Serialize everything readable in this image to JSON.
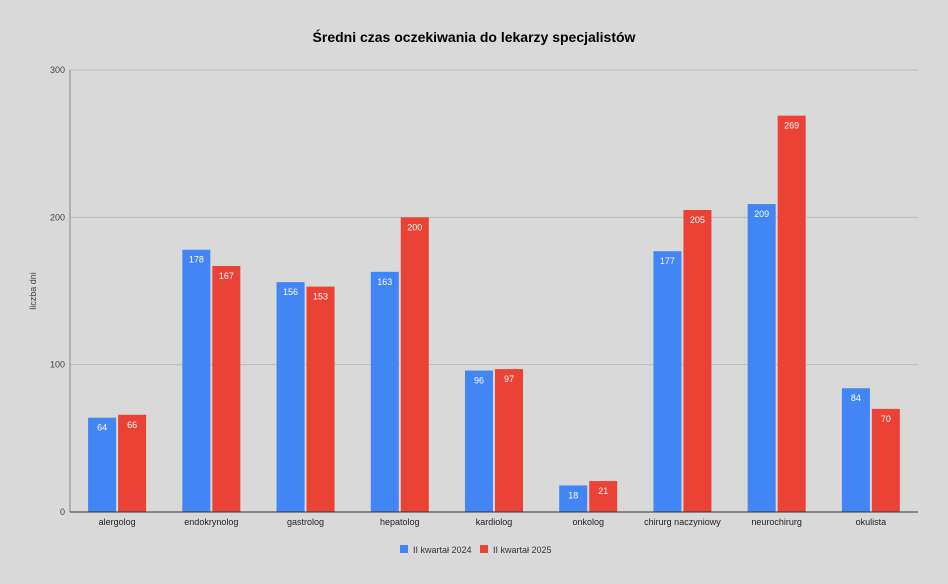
{
  "chart_data": {
    "type": "bar",
    "title": "Średni czas oczekiwania do lekarzy specjalistów",
    "xlabel": "",
    "ylabel": "liczba dni",
    "ylim": [
      0,
      300
    ],
    "yticks": [
      0,
      100,
      200,
      300
    ],
    "grid": true,
    "legend_position": "bottom",
    "categories": [
      "alergolog",
      "endokrynolog",
      "gastrolog",
      "hepatolog",
      "kardiolog",
      "onkolog",
      "chirurg naczyniowy",
      "neurochirurg",
      "okulista"
    ],
    "series": [
      {
        "name": "II kwartał 2024",
        "color": "#4285f4",
        "values": [
          64,
          178,
          156,
          163,
          96,
          18,
          177,
          209,
          84
        ]
      },
      {
        "name": "II kwartał 2025",
        "color": "#ea4335",
        "values": [
          66,
          167,
          153,
          200,
          97,
          21,
          205,
          269,
          70
        ]
      }
    ]
  }
}
